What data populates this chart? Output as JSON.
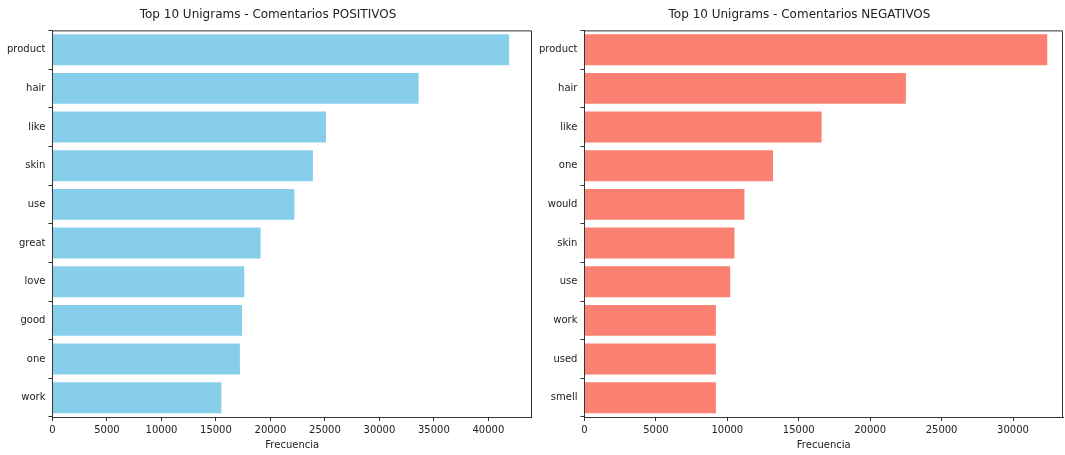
{
  "chart_data": [
    {
      "type": "bar",
      "orientation": "horizontal",
      "title": "Top 10 Unigrams - Comentarios POSITIVOS",
      "xlabel": "Frecuencia",
      "categories": [
        "product",
        "hair",
        "like",
        "skin",
        "use",
        "great",
        "love",
        "good",
        "one",
        "work"
      ],
      "values": [
        41900,
        33600,
        25100,
        23900,
        22200,
        19100,
        17600,
        17400,
        17200,
        15500
      ],
      "color": "#87ceeb",
      "xlim": [
        0,
        44000
      ],
      "xticks": [
        0,
        5000,
        10000,
        15000,
        20000,
        25000,
        30000,
        35000,
        40000
      ],
      "grid": false,
      "legend": false
    },
    {
      "type": "bar",
      "orientation": "horizontal",
      "title": "Top 10 Unigrams - Comentarios NEGATIVOS",
      "xlabel": "Frecuencia",
      "categories": [
        "product",
        "hair",
        "like",
        "one",
        "would",
        "skin",
        "use",
        "work",
        "used",
        "smell"
      ],
      "values": [
        32400,
        22500,
        16600,
        13200,
        11200,
        10500,
        10200,
        9200,
        9200,
        9200
      ],
      "color": "#fa8072",
      "xlim": [
        0,
        33500
      ],
      "xticks": [
        0,
        5000,
        10000,
        15000,
        20000,
        25000,
        30000
      ],
      "grid": false,
      "legend": false
    }
  ]
}
